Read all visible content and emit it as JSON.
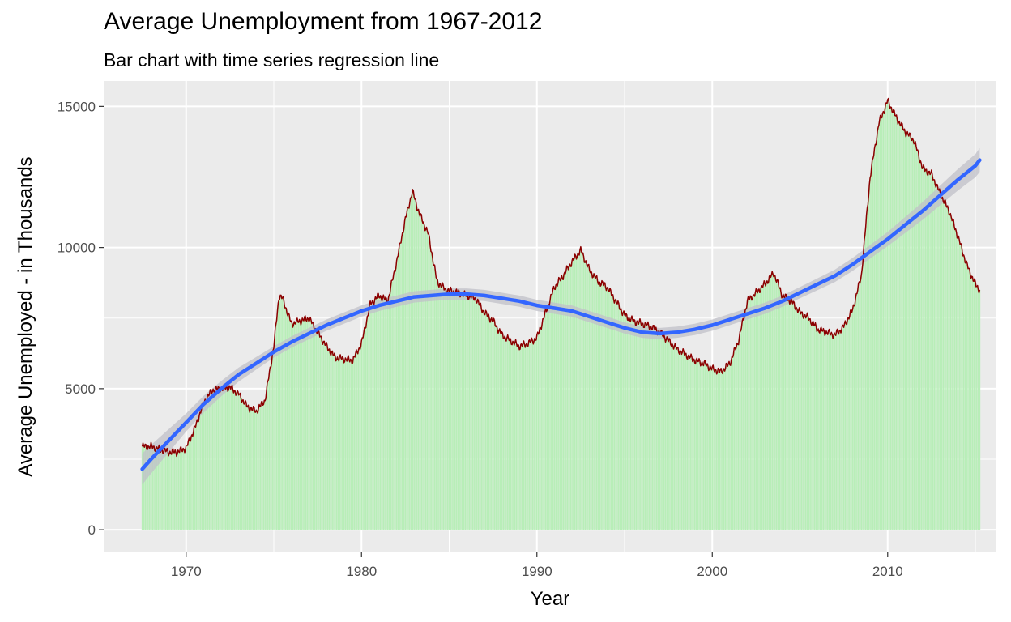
{
  "chart_data": {
    "type": "bar",
    "title": "Average Unemployment from 1967-2012",
    "subtitle": "Bar chart with time series regression line",
    "xlabel": "Year",
    "ylabel": "Average Unemployed - in Thousands",
    "xlim": [
      1965.3,
      2016.2
    ],
    "ylim": [
      -800,
      15900
    ],
    "x_ticks": [
      1970,
      1980,
      1990,
      2000,
      2010
    ],
    "y_ticks": [
      0,
      5000,
      10000,
      15000
    ],
    "x_tick_labels": [
      "1970",
      "1980",
      "1990",
      "2000",
      "2010"
    ],
    "y_tick_labels": [
      "0",
      "5000",
      "10000",
      "15000"
    ],
    "grid": true,
    "legend": "none",
    "colors": {
      "panel_background": "#ebebeb",
      "gridline": "#ffffff",
      "bars": "#b8eeb8",
      "series_line": "#8b0000",
      "regression_line": "#3366ff",
      "confidence_band": "#c0c0c8"
    },
    "series": [
      {
        "role": "bars and outline line",
        "points": [
          [
            1967.5,
            2950
          ],
          [
            1968.0,
            2950
          ],
          [
            1968.5,
            2850
          ],
          [
            1969.0,
            2750
          ],
          [
            1969.5,
            2750
          ],
          [
            1970.0,
            2900
          ],
          [
            1970.5,
            3600
          ],
          [
            1971.0,
            4500
          ],
          [
            1971.5,
            4950
          ],
          [
            1972.0,
            5000
          ],
          [
            1972.5,
            5050
          ],
          [
            1973.0,
            4800
          ],
          [
            1973.5,
            4350
          ],
          [
            1974.0,
            4200
          ],
          [
            1974.5,
            4600
          ],
          [
            1975.0,
            6500
          ],
          [
            1975.3,
            8300
          ],
          [
            1975.5,
            8200
          ],
          [
            1976.0,
            7300
          ],
          [
            1976.5,
            7400
          ],
          [
            1977.0,
            7500
          ],
          [
            1977.5,
            7000
          ],
          [
            1978.0,
            6500
          ],
          [
            1978.5,
            6100
          ],
          [
            1979.0,
            6050
          ],
          [
            1979.5,
            6000
          ],
          [
            1980.0,
            6600
          ],
          [
            1980.5,
            8000
          ],
          [
            1981.0,
            8300
          ],
          [
            1981.5,
            8100
          ],
          [
            1982.0,
            9500
          ],
          [
            1982.5,
            11000
          ],
          [
            1982.9,
            12000
          ],
          [
            1983.3,
            11200
          ],
          [
            1983.8,
            10500
          ],
          [
            1984.3,
            8800
          ],
          [
            1984.8,
            8500
          ],
          [
            1985.5,
            8400
          ],
          [
            1986.0,
            8300
          ],
          [
            1986.5,
            8200
          ],
          [
            1987.0,
            7700
          ],
          [
            1987.5,
            7400
          ],
          [
            1988.0,
            6900
          ],
          [
            1988.5,
            6700
          ],
          [
            1989.0,
            6500
          ],
          [
            1989.5,
            6600
          ],
          [
            1990.0,
            6800
          ],
          [
            1990.5,
            7700
          ],
          [
            1991.0,
            8600
          ],
          [
            1991.5,
            9000
          ],
          [
            1992.0,
            9500
          ],
          [
            1992.5,
            9900
          ],
          [
            1993.0,
            9200
          ],
          [
            1993.5,
            8800
          ],
          [
            1994.0,
            8600
          ],
          [
            1994.5,
            8100
          ],
          [
            1995.0,
            7600
          ],
          [
            1995.5,
            7400
          ],
          [
            1996.0,
            7300
          ],
          [
            1996.5,
            7200
          ],
          [
            1997.0,
            7000
          ],
          [
            1997.5,
            6700
          ],
          [
            1998.0,
            6400
          ],
          [
            1998.5,
            6200
          ],
          [
            1999.0,
            6000
          ],
          [
            1999.5,
            5900
          ],
          [
            2000.0,
            5700
          ],
          [
            2000.5,
            5600
          ],
          [
            2001.0,
            5900
          ],
          [
            2001.5,
            6700
          ],
          [
            2002.0,
            8100
          ],
          [
            2002.5,
            8400
          ],
          [
            2003.0,
            8700
          ],
          [
            2003.5,
            9100
          ],
          [
            2004.0,
            8300
          ],
          [
            2004.5,
            8100
          ],
          [
            2005.0,
            7700
          ],
          [
            2005.5,
            7500
          ],
          [
            2006.0,
            7100
          ],
          [
            2006.5,
            7000
          ],
          [
            2007.0,
            6900
          ],
          [
            2007.5,
            7200
          ],
          [
            2008.0,
            7800
          ],
          [
            2008.5,
            9000
          ],
          [
            2009.0,
            12500
          ],
          [
            2009.5,
            14400
          ],
          [
            2010.0,
            15200
          ],
          [
            2010.5,
            14600
          ],
          [
            2011.0,
            14100
          ],
          [
            2011.5,
            13800
          ],
          [
            2012.0,
            12800
          ],
          [
            2012.5,
            12600
          ],
          [
            2013.0,
            11900
          ],
          [
            2013.5,
            11300
          ],
          [
            2014.0,
            10400
          ],
          [
            2014.5,
            9400
          ],
          [
            2015.0,
            8700
          ],
          [
            2015.25,
            8500
          ]
        ]
      },
      {
        "role": "regression line",
        "points": [
          [
            1967.5,
            2150
          ],
          [
            1968.0,
            2500
          ],
          [
            1969.0,
            3150
          ],
          [
            1970.0,
            3800
          ],
          [
            1971.0,
            4450
          ],
          [
            1972.0,
            5000
          ],
          [
            1973.0,
            5500
          ],
          [
            1974.0,
            5900
          ],
          [
            1975.0,
            6300
          ],
          [
            1976.0,
            6650
          ],
          [
            1977.0,
            6950
          ],
          [
            1978.0,
            7250
          ],
          [
            1979.0,
            7500
          ],
          [
            1980.0,
            7750
          ],
          [
            1981.0,
            7950
          ],
          [
            1982.0,
            8100
          ],
          [
            1983.0,
            8250
          ],
          [
            1984.0,
            8300
          ],
          [
            1985.0,
            8350
          ],
          [
            1986.0,
            8350
          ],
          [
            1987.0,
            8300
          ],
          [
            1988.0,
            8200
          ],
          [
            1989.0,
            8100
          ],
          [
            1990.0,
            7950
          ],
          [
            1991.0,
            7850
          ],
          [
            1992.0,
            7750
          ],
          [
            1993.0,
            7550
          ],
          [
            1994.0,
            7350
          ],
          [
            1995.0,
            7150
          ],
          [
            1996.0,
            7000
          ],
          [
            1997.0,
            6950
          ],
          [
            1998.0,
            7000
          ],
          [
            1999.0,
            7100
          ],
          [
            2000.0,
            7250
          ],
          [
            2001.0,
            7450
          ],
          [
            2002.0,
            7650
          ],
          [
            2003.0,
            7850
          ],
          [
            2004.0,
            8100
          ],
          [
            2005.0,
            8400
          ],
          [
            2006.0,
            8700
          ],
          [
            2007.0,
            9000
          ],
          [
            2008.0,
            9400
          ],
          [
            2009.0,
            9850
          ],
          [
            2010.0,
            10300
          ],
          [
            2011.0,
            10800
          ],
          [
            2012.0,
            11300
          ],
          [
            2013.0,
            11850
          ],
          [
            2014.0,
            12400
          ],
          [
            2015.0,
            12900
          ],
          [
            2015.25,
            13100
          ]
        ],
        "band_halfwidth": [
          [
            1967.5,
            550
          ],
          [
            1970.0,
            320
          ],
          [
            1975.0,
            200
          ],
          [
            1985.0,
            200
          ],
          [
            1995.0,
            200
          ],
          [
            2005.0,
            200
          ],
          [
            2010.0,
            250
          ],
          [
            2015.25,
            420
          ]
        ]
      }
    ]
  }
}
